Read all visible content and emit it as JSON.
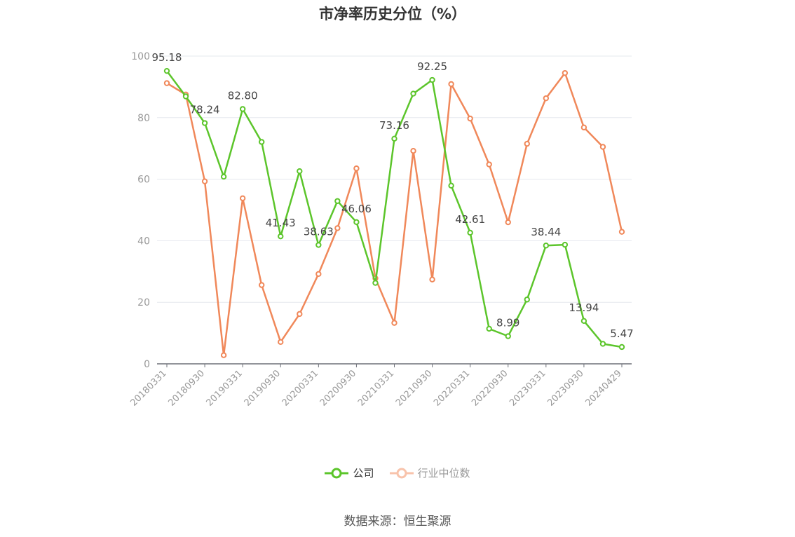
{
  "title": "市净率历史分位（%）",
  "source": "数据来源：恒生聚源",
  "chart_data": {
    "type": "line",
    "title": "市净率历史分位（%）",
    "ylim": [
      0,
      100
    ],
    "yticks": [
      0,
      20,
      40,
      60,
      80,
      100
    ],
    "grid": true,
    "legend_position": "bottom",
    "x": [
      "20180331",
      "20180630",
      "20180930",
      "20181231",
      "20190331",
      "20190630",
      "20190930",
      "20191231",
      "20200331",
      "20200630",
      "20200930",
      "20201231",
      "20210331",
      "20210630",
      "20210930",
      "20211231",
      "20220331",
      "20220630",
      "20220930",
      "20221231",
      "20230331",
      "20230630",
      "20230930",
      "20231231",
      "20240429"
    ],
    "xtick_labels": [
      "20180331",
      "20180930",
      "20190331",
      "20190930",
      "20200331",
      "20200930",
      "20210331",
      "20210930",
      "20220331",
      "20220930",
      "20230331",
      "20230930",
      "20240429"
    ],
    "series": [
      {
        "name": "公司",
        "color": "#5cc52b",
        "values": [
          95.18,
          86.9,
          78.24,
          60.8,
          82.8,
          72.1,
          41.43,
          62.6,
          38.63,
          52.9,
          46.06,
          26.3,
          73.16,
          87.8,
          92.25,
          57.9,
          42.61,
          11.4,
          8.99,
          20.9,
          38.44,
          38.7,
          13.94,
          6.5,
          5.47
        ],
        "labels": [
          "95.18",
          null,
          "78.24",
          null,
          "82.80",
          null,
          "41.43",
          null,
          "38.63",
          null,
          "46.06",
          null,
          "73.16",
          null,
          "92.25",
          null,
          "42.61",
          null,
          "8.99",
          null,
          "38.44",
          null,
          "13.94",
          null,
          "5.47"
        ]
      },
      {
        "name": "行业中位数",
        "color": "#f0885a",
        "values": [
          91.2,
          87.5,
          59.3,
          2.8,
          53.8,
          25.6,
          7.1,
          16.2,
          29.2,
          44.1,
          63.5,
          27.8,
          13.3,
          69.2,
          27.4,
          90.9,
          79.7,
          64.8,
          46.0,
          71.5,
          86.3,
          94.5,
          76.8,
          70.5,
          42.9
        ]
      }
    ]
  }
}
